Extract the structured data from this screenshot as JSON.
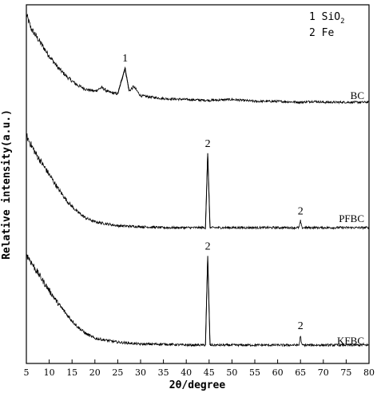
{
  "chart_data": {
    "type": "line",
    "xlabel": "2θ/degree",
    "ylabel": "Relative  intensity(a.u.)",
    "xlim": [
      5,
      80
    ],
    "xticks": [
      5,
      10,
      15,
      20,
      25,
      30,
      35,
      40,
      45,
      50,
      55,
      60,
      65,
      70,
      75,
      80
    ],
    "grid": false,
    "y_tick_labels_shown": false,
    "legend": {
      "placement": "top-right",
      "entries": [
        {
          "number": "1",
          "label": "SiO",
          "subscript": "2"
        },
        {
          "number": "2",
          "label": "Fe"
        }
      ]
    },
    "series": [
      {
        "name": "BC",
        "baseline": 0.05,
        "points": [
          [
            5,
            1.0
          ],
          [
            6,
            0.85
          ],
          [
            8,
            0.7
          ],
          [
            10,
            0.55
          ],
          [
            12,
            0.42
          ],
          [
            14,
            0.32
          ],
          [
            16,
            0.24
          ],
          [
            18,
            0.19
          ],
          [
            20,
            0.17
          ],
          [
            21.5,
            0.21
          ],
          [
            23,
            0.16
          ],
          [
            25,
            0.14
          ],
          [
            26.6,
            0.42
          ],
          [
            27.5,
            0.17
          ],
          [
            28.5,
            0.22
          ],
          [
            30,
            0.12
          ],
          [
            35,
            0.09
          ],
          [
            40,
            0.08
          ],
          [
            45,
            0.07
          ],
          [
            50,
            0.08
          ],
          [
            55,
            0.06
          ],
          [
            60,
            0.06
          ],
          [
            65,
            0.05
          ],
          [
            68,
            0.06
          ],
          [
            70,
            0.05
          ],
          [
            75,
            0.05
          ],
          [
            80,
            0.05
          ]
        ],
        "peaks": [
          {
            "label": "1",
            "x": 26.6
          }
        ]
      },
      {
        "name": "PFBC",
        "baseline": 0.05,
        "points": [
          [
            5,
            1.0
          ],
          [
            7,
            0.82
          ],
          [
            10,
            0.6
          ],
          [
            12,
            0.45
          ],
          [
            14,
            0.32
          ],
          [
            16,
            0.22
          ],
          [
            18,
            0.15
          ],
          [
            20,
            0.11
          ],
          [
            25,
            0.07
          ],
          [
            30,
            0.06
          ],
          [
            35,
            0.05
          ],
          [
            40,
            0.05
          ],
          [
            44.2,
            0.05
          ],
          [
            44.7,
            0.82
          ],
          [
            45.2,
            0.05
          ],
          [
            50,
            0.05
          ],
          [
            55,
            0.05
          ],
          [
            60,
            0.05
          ],
          [
            64.7,
            0.05
          ],
          [
            65.0,
            0.12
          ],
          [
            65.3,
            0.05
          ],
          [
            70,
            0.05
          ],
          [
            75,
            0.05
          ],
          [
            80,
            0.05
          ]
        ],
        "peaks": [
          {
            "label": "2",
            "x": 44.7
          },
          {
            "label": "2",
            "x": 65.0
          }
        ]
      },
      {
        "name": "KFBC",
        "baseline": 0.05,
        "points": [
          [
            5,
            1.0
          ],
          [
            7,
            0.84
          ],
          [
            10,
            0.62
          ],
          [
            12,
            0.48
          ],
          [
            14,
            0.36
          ],
          [
            16,
            0.25
          ],
          [
            18,
            0.17
          ],
          [
            20,
            0.12
          ],
          [
            25,
            0.08
          ],
          [
            30,
            0.06
          ],
          [
            35,
            0.06
          ],
          [
            40,
            0.05
          ],
          [
            44.2,
            0.05
          ],
          [
            44.7,
            0.98
          ],
          [
            45.2,
            0.05
          ],
          [
            50,
            0.05
          ],
          [
            55,
            0.05
          ],
          [
            60,
            0.05
          ],
          [
            64.7,
            0.05
          ],
          [
            65.0,
            0.15
          ],
          [
            65.3,
            0.05
          ],
          [
            70,
            0.05
          ],
          [
            75,
            0.05
          ],
          [
            80,
            0.05
          ]
        ],
        "peaks": [
          {
            "label": "2",
            "x": 44.7
          },
          {
            "label": "2",
            "x": 65.0
          }
        ]
      }
    ]
  }
}
